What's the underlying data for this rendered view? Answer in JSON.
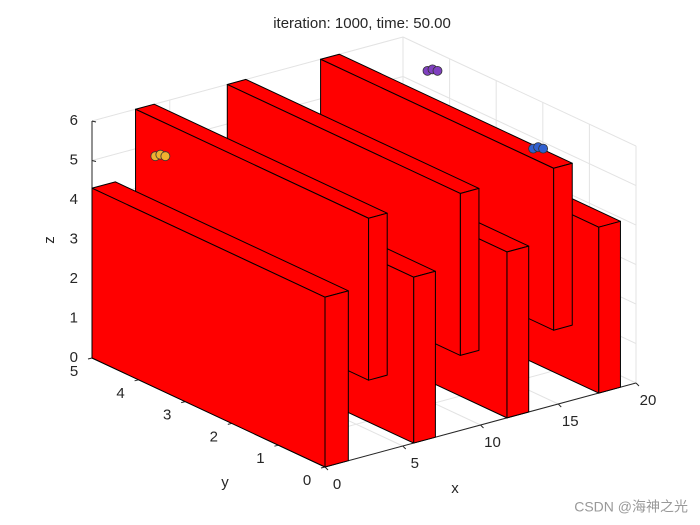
{
  "chart_data": {
    "type": "box3d",
    "title": "iteration: 1000, time: 50.00",
    "x_label": "x",
    "y_label": "y",
    "z_label": "z",
    "xlim": [
      0,
      20
    ],
    "ylim": [
      0,
      5
    ],
    "zlim": [
      0,
      6
    ],
    "xticks": [
      0,
      5,
      10,
      15,
      20
    ],
    "yticks": [
      0,
      1,
      2,
      3,
      4,
      5
    ],
    "zticks": [
      0,
      1,
      2,
      3,
      4,
      5,
      6
    ],
    "grid": true,
    "obstacle_color": "#ff0000",
    "obstacles": [
      {
        "x": [
          0,
          1.5
        ],
        "y": [
          0,
          5
        ],
        "z": [
          0,
          4.3
        ]
      },
      {
        "x": [
          2.8,
          4.0
        ],
        "y": [
          0,
          5
        ],
        "z": [
          1.9,
          6
        ]
      },
      {
        "x": [
          5.7,
          7.1
        ],
        "y": [
          0,
          5
        ],
        "z": [
          0,
          4.2
        ]
      },
      {
        "x": [
          8.7,
          9.9
        ],
        "y": [
          0,
          5
        ],
        "z": [
          1.9,
          6
        ]
      },
      {
        "x": [
          11.7,
          13.1
        ],
        "y": [
          0,
          5
        ],
        "z": [
          0,
          4.2
        ]
      },
      {
        "x": [
          14.7,
          15.9
        ],
        "y": [
          0,
          5
        ],
        "z": [
          1.9,
          6
        ]
      },
      {
        "x": [
          17.6,
          19.0
        ],
        "y": [
          0,
          5
        ],
        "z": [
          0,
          4.2
        ]
      }
    ],
    "agents": [
      {
        "x": 1.4,
        "y": 4,
        "z": 5.55,
        "color": "#f0b030"
      },
      {
        "x": 18.9,
        "y": 4,
        "z": 5.85,
        "color": "#8040c0"
      },
      {
        "x": 19.7,
        "y": 2,
        "z": 4.9,
        "color": "#3060d0"
      }
    ],
    "watermark": "CSDN @海神之光"
  }
}
